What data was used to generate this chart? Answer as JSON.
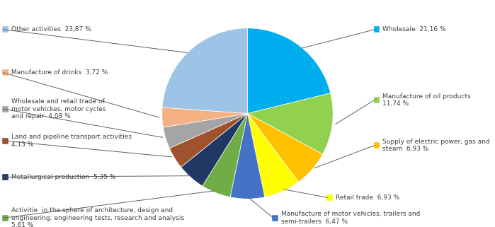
{
  "slices": [
    {
      "label": "Wholesale  21,16 %",
      "value": 21.16,
      "color": "#00AEEF",
      "label_side": "right"
    },
    {
      "label": "Manufacture of oil products\n11,74 %",
      "value": 11.74,
      "color": "#92D050",
      "label_side": "right"
    },
    {
      "label": "Supply of electric power, gas and\nsteam  6,93 %",
      "value": 6.93,
      "color": "#FFC000",
      "label_side": "right"
    },
    {
      "label": "Retail trade  6,93 %",
      "value": 6.93,
      "color": "#FFFF00",
      "label_side": "right"
    },
    {
      "label": "Manufacture of motor vehicles, trailers and\nsemi-trailers  6,47 %",
      "value": 6.47,
      "color": "#4472C4",
      "label_side": "right"
    },
    {
      "label": "Activitie  in the sphere of architecture, design and\nengineering; engineering tests, research and analysis\n5,61 %",
      "value": 5.61,
      "color": "#70AD47",
      "label_side": "left"
    },
    {
      "label": "Metallurgical production  5,35 %",
      "value": 5.35,
      "color": "#1F3864",
      "label_side": "left"
    },
    {
      "label": "Land and pipeline transport activities\n4,13 %",
      "value": 4.13,
      "color": "#A0522D",
      "label_side": "left"
    },
    {
      "label": "Wholesale and retail trade of\nmotor vehickes, motor cycles\nand repair  4,08 %",
      "value": 4.08,
      "color": "#A5A5A5",
      "label_side": "left"
    },
    {
      "label": "Manufacture of drinks  3,72 %",
      "value": 3.72,
      "color": "#F4B183",
      "label_side": "left"
    },
    {
      "label": "Other activities  23,87 %",
      "value": 23.87,
      "color": "#9DC3E6",
      "label_side": "left"
    }
  ],
  "figsize": [
    6.99,
    3.21
  ],
  "dpi": 100,
  "bg_color": "#FFFFFF",
  "label_fontsize": 6.5,
  "label_color": "#404040",
  "square_size": 0.008
}
